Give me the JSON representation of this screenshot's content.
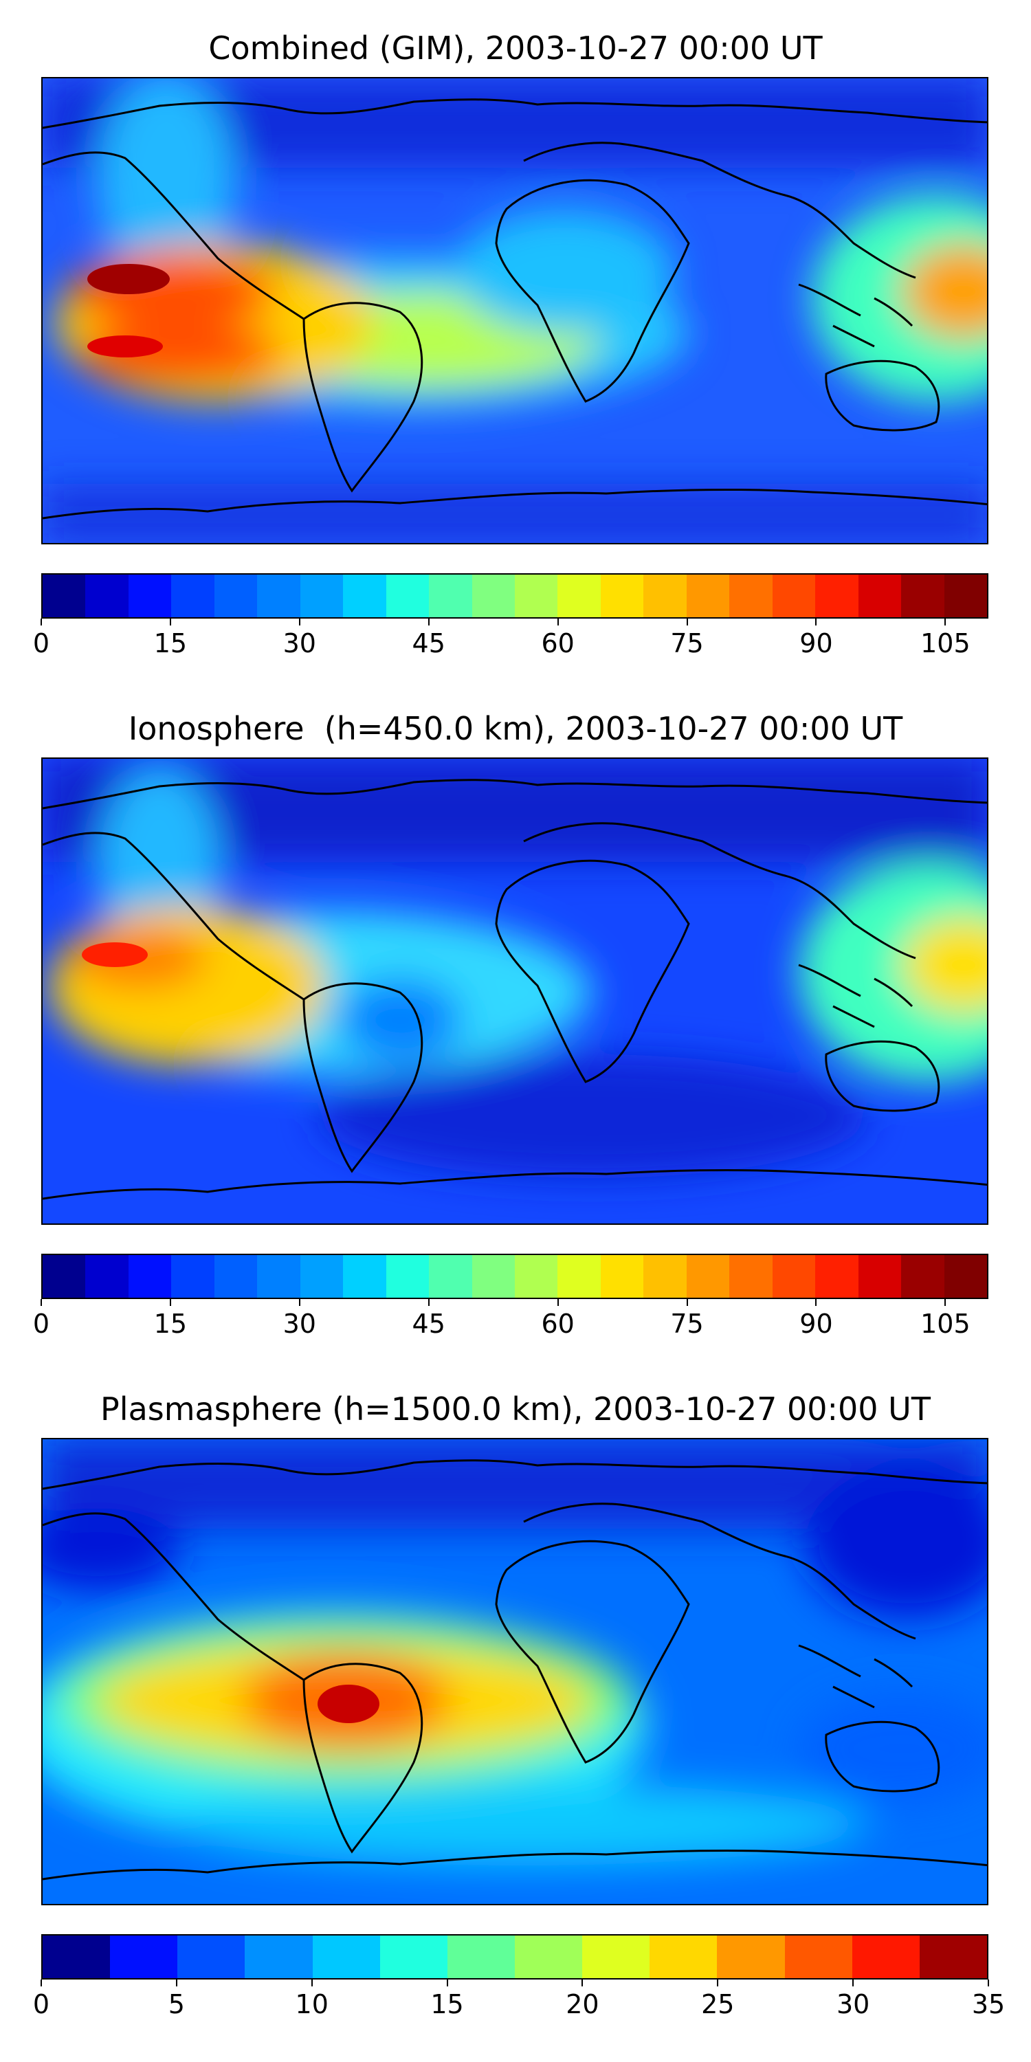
{
  "panels": [
    {
      "title": "Combined (GIM), 2003-10-27 00:00 UT",
      "colorbar": {
        "min": 0,
        "max": 110,
        "step": 5,
        "ticks": [
          "0",
          "15",
          "30",
          "45",
          "60",
          "75",
          "90",
          "105"
        ],
        "tick_values": [
          0,
          15,
          30,
          45,
          60,
          75,
          90,
          105
        ],
        "colors": [
          "#00008f",
          "#0000cf",
          "#0010ff",
          "#0040ff",
          "#0060ff",
          "#0080ff",
          "#00a0ff",
          "#00d0ff",
          "#20ffdf",
          "#50ffaf",
          "#80ff80",
          "#b0ff50",
          "#dfff20",
          "#ffe000",
          "#ffc000",
          "#ff9800",
          "#ff7000",
          "#ff4800",
          "#ff2000",
          "#d80000",
          "#9a0000",
          "#800000"
        ]
      }
    },
    {
      "title": "Ionosphere  (h=450.0 km), 2003-10-27 00:00 UT",
      "colorbar": {
        "min": 0,
        "max": 110,
        "step": 5,
        "ticks": [
          "0",
          "15",
          "30",
          "45",
          "60",
          "75",
          "90",
          "105"
        ],
        "tick_values": [
          0,
          15,
          30,
          45,
          60,
          75,
          90,
          105
        ],
        "colors": [
          "#00008f",
          "#0000cf",
          "#0010ff",
          "#0040ff",
          "#0060ff",
          "#0080ff",
          "#00a0ff",
          "#00d0ff",
          "#20ffdf",
          "#50ffaf",
          "#80ff80",
          "#b0ff50",
          "#dfff20",
          "#ffe000",
          "#ffc000",
          "#ff9800",
          "#ff7000",
          "#ff4800",
          "#ff2000",
          "#d80000",
          "#9a0000",
          "#800000"
        ]
      }
    },
    {
      "title": "Plasmasphere (h=1500.0 km), 2003-10-27 00:00 UT",
      "colorbar": {
        "min": 0,
        "max": 35,
        "step": 2.5,
        "ticks": [
          "0",
          "5",
          "10",
          "15",
          "20",
          "25",
          "30",
          "35"
        ],
        "tick_values": [
          0,
          5,
          10,
          15,
          20,
          25,
          30,
          35
        ],
        "colors": [
          "#00008f",
          "#0010ff",
          "#0050ff",
          "#0090ff",
          "#00c8ff",
          "#20ffdf",
          "#60ff98",
          "#a0ff58",
          "#dfff20",
          "#ffd800",
          "#ff9800",
          "#ff5800",
          "#ff1800",
          "#a00000"
        ]
      }
    }
  ]
}
